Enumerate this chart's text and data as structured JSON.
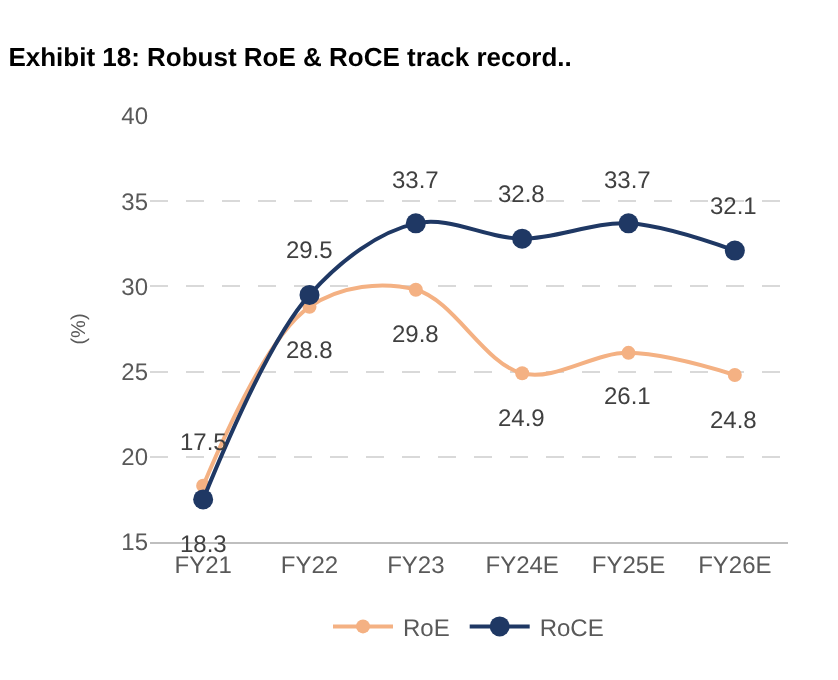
{
  "chart_data": {
    "type": "line",
    "title": "Exhibit 18: Robust RoE & RoCE track record..",
    "ylabel": "(%)",
    "categories": [
      "FY21",
      "FY22",
      "FY23",
      "FY24E",
      "FY25E",
      "FY26E"
    ],
    "series": [
      {
        "name": "RoE",
        "color": "#f4b183",
        "values": [
          18.3,
          28.8,
          29.8,
          24.9,
          26.1,
          24.8
        ]
      },
      {
        "name": "RoCE",
        "color": "#1f3864",
        "values": [
          17.5,
          29.5,
          33.7,
          32.8,
          33.7,
          32.1
        ]
      }
    ],
    "ylim": [
      15,
      40
    ],
    "yticks": [
      15,
      20,
      25,
      30,
      35,
      40
    ],
    "grid": "y",
    "legend": "bottom",
    "marker": "circle",
    "line_style": "solid",
    "data_labels": true
  }
}
